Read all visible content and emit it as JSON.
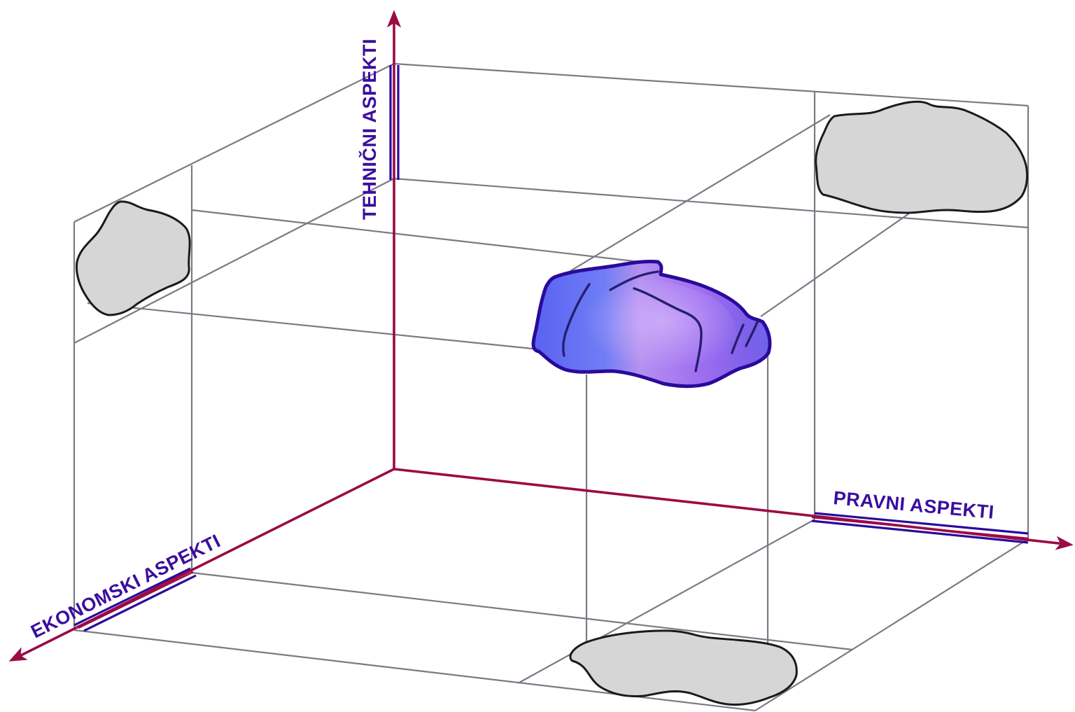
{
  "axes": {
    "vertical": {
      "label": "TEHNIČNI ASPEKTI"
    },
    "right": {
      "label": "PRAVNI ASPEKTI"
    },
    "left": {
      "label": "EKONOMSKI ASPEKTI"
    }
  },
  "colors": {
    "axis": "#9b0b45",
    "label": "#3b0e9e",
    "grid": "#7a7a85",
    "projection_fill": "#d6d6d6",
    "object_blue": "#6a6cf5",
    "object_violet": "#a878f0",
    "object_outline": "#2a0a9c"
  }
}
